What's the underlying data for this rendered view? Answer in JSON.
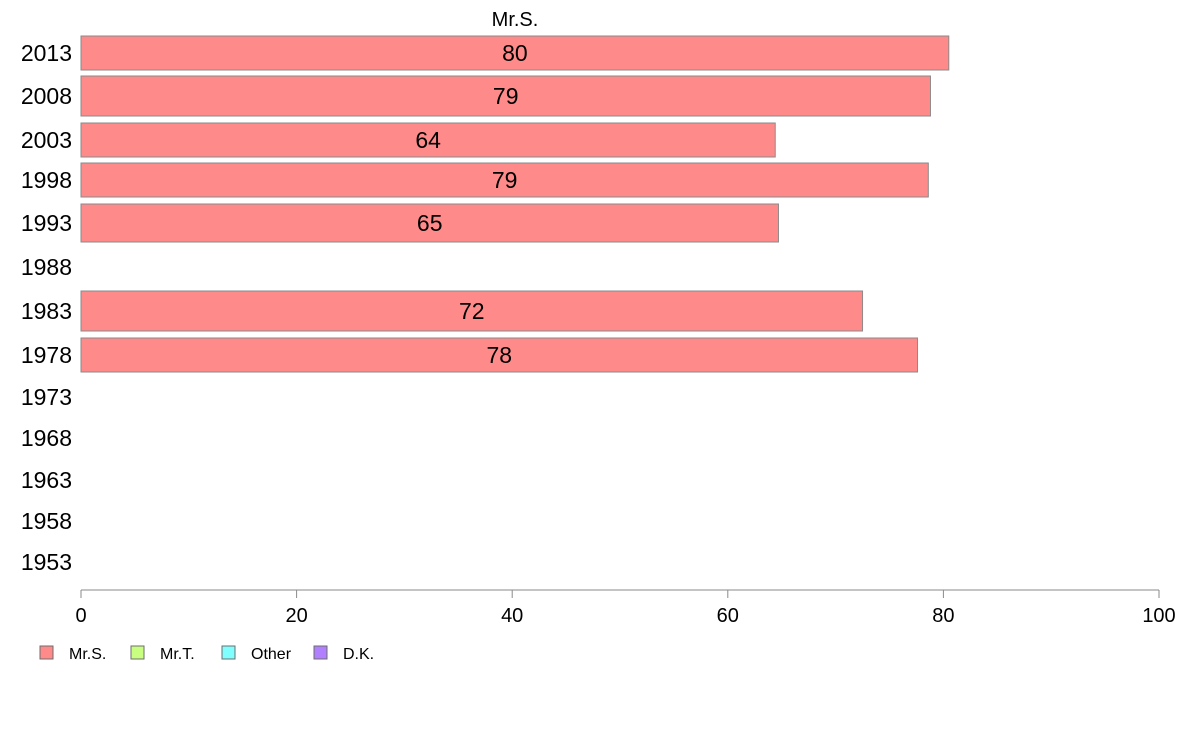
{
  "chart_data": {
    "type": "bar",
    "orientation": "horizontal",
    "title": "Mr.S.",
    "categories": [
      "2013",
      "2008",
      "2003",
      "1998",
      "1993",
      "1988",
      "1983",
      "1978",
      "1973",
      "1968",
      "1963",
      "1958",
      "1953"
    ],
    "series": [
      {
        "name": "Mr.S.",
        "color": "#ff8a8a",
        "values": [
          80.5,
          78.8,
          64.4,
          78.6,
          64.7,
          null,
          72.5,
          77.6,
          null,
          null,
          null,
          null,
          null
        ],
        "labels": [
          "80",
          "79",
          "64",
          "79",
          "65",
          "",
          "72",
          "78",
          "",
          "",
          "",
          "",
          ""
        ]
      }
    ],
    "xlim": [
      0,
      100
    ],
    "xticks": [
      "0",
      "20",
      "40",
      "60",
      "80",
      "100"
    ],
    "legend": {
      "position": "bottom-left",
      "items": [
        {
          "name": "Mr.S.",
          "color": "#ff8a8a"
        },
        {
          "name": "Mr.T.",
          "color": "#c8ff80"
        },
        {
          "name": "Other",
          "color": "#80ffff"
        },
        {
          "name": "D.K.",
          "color": "#b080ff"
        }
      ]
    }
  }
}
